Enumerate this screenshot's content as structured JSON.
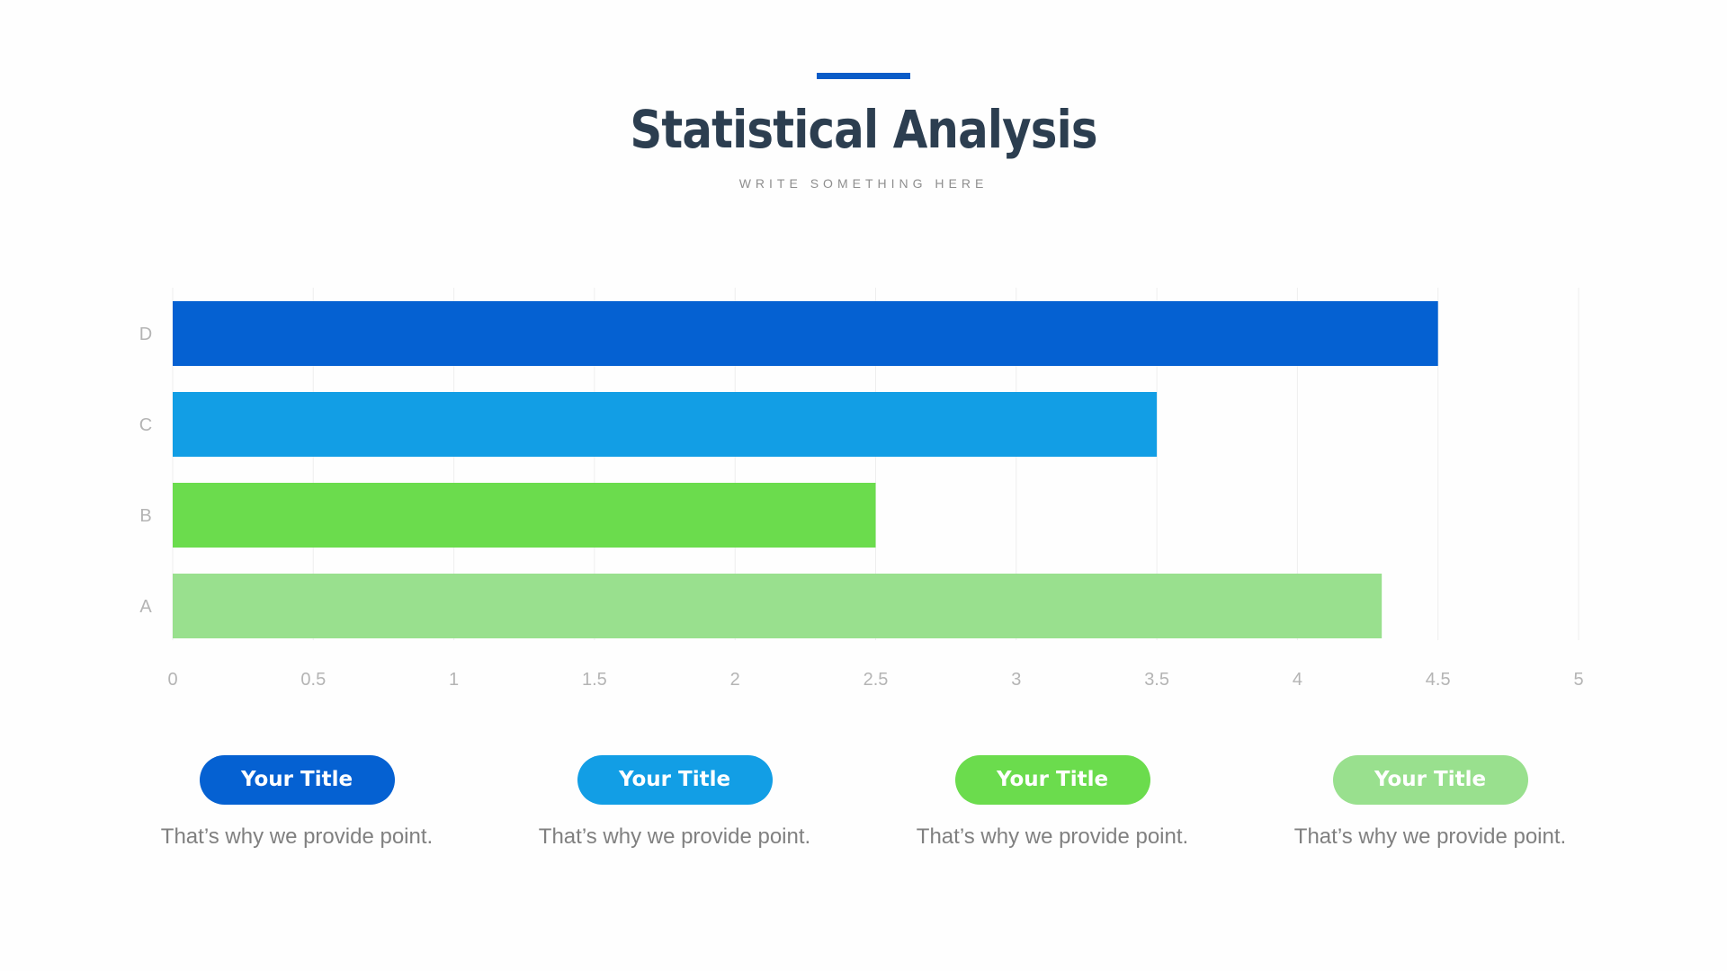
{
  "slide": {
    "title": "Statistical Analysis",
    "subtitle": "WRITE SOMETHING HERE",
    "title_color": "#2c3e50",
    "accent_color": "#0a5cc8"
  },
  "chart_data": {
    "type": "bar",
    "orientation": "horizontal",
    "title": "",
    "xlabel": "",
    "ylabel": "",
    "categories": [
      "D",
      "C",
      "B",
      "A"
    ],
    "values": [
      4.5,
      3.5,
      2.5,
      4.3
    ],
    "colors": [
      "#0561d2",
      "#129ee5",
      "#6bdc4d",
      "#99e08e"
    ],
    "xlim": [
      0,
      5
    ],
    "x_ticks": [
      "0",
      "0.5",
      "1",
      "1.5",
      "2",
      "2.5",
      "3",
      "3.5",
      "4",
      "4.5",
      "5"
    ],
    "grid": true,
    "legend": "none"
  },
  "cards": [
    {
      "title": "Your Title",
      "text": "That’s why we provide point.",
      "color": "#0561d2"
    },
    {
      "title": "Your Title",
      "text": "That’s why we provide point.",
      "color": "#129ee5"
    },
    {
      "title": "Your Title",
      "text": "That’s why we provide point.",
      "color": "#6bdc4d"
    },
    {
      "title": "Your Title",
      "text": "That’s why we provide point.",
      "color": "#99e08e"
    }
  ]
}
